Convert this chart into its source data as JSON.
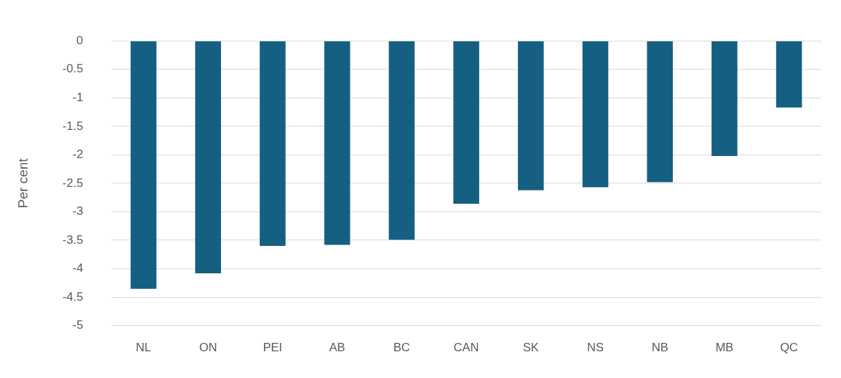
{
  "chart_data": {
    "type": "bar",
    "ylabel": "Per cent",
    "categories": [
      "NL",
      "ON",
      "PEI",
      "AB",
      "BC",
      "CAN",
      "SK",
      "NS",
      "NB",
      "MB",
      "QC"
    ],
    "values": [
      -4.35,
      -4.08,
      -3.6,
      -3.58,
      -3.49,
      -2.86,
      -2.62,
      -2.57,
      -2.48,
      -2.02,
      -1.17
    ],
    "color": "#156082",
    "ylim": [
      -5,
      0
    ],
    "yticks": [
      -5,
      -4.5,
      -4,
      -3.5,
      -3,
      -2.5,
      -2,
      -1.5,
      -1,
      -0.5,
      0
    ],
    "grid": "y",
    "legend": false
  }
}
